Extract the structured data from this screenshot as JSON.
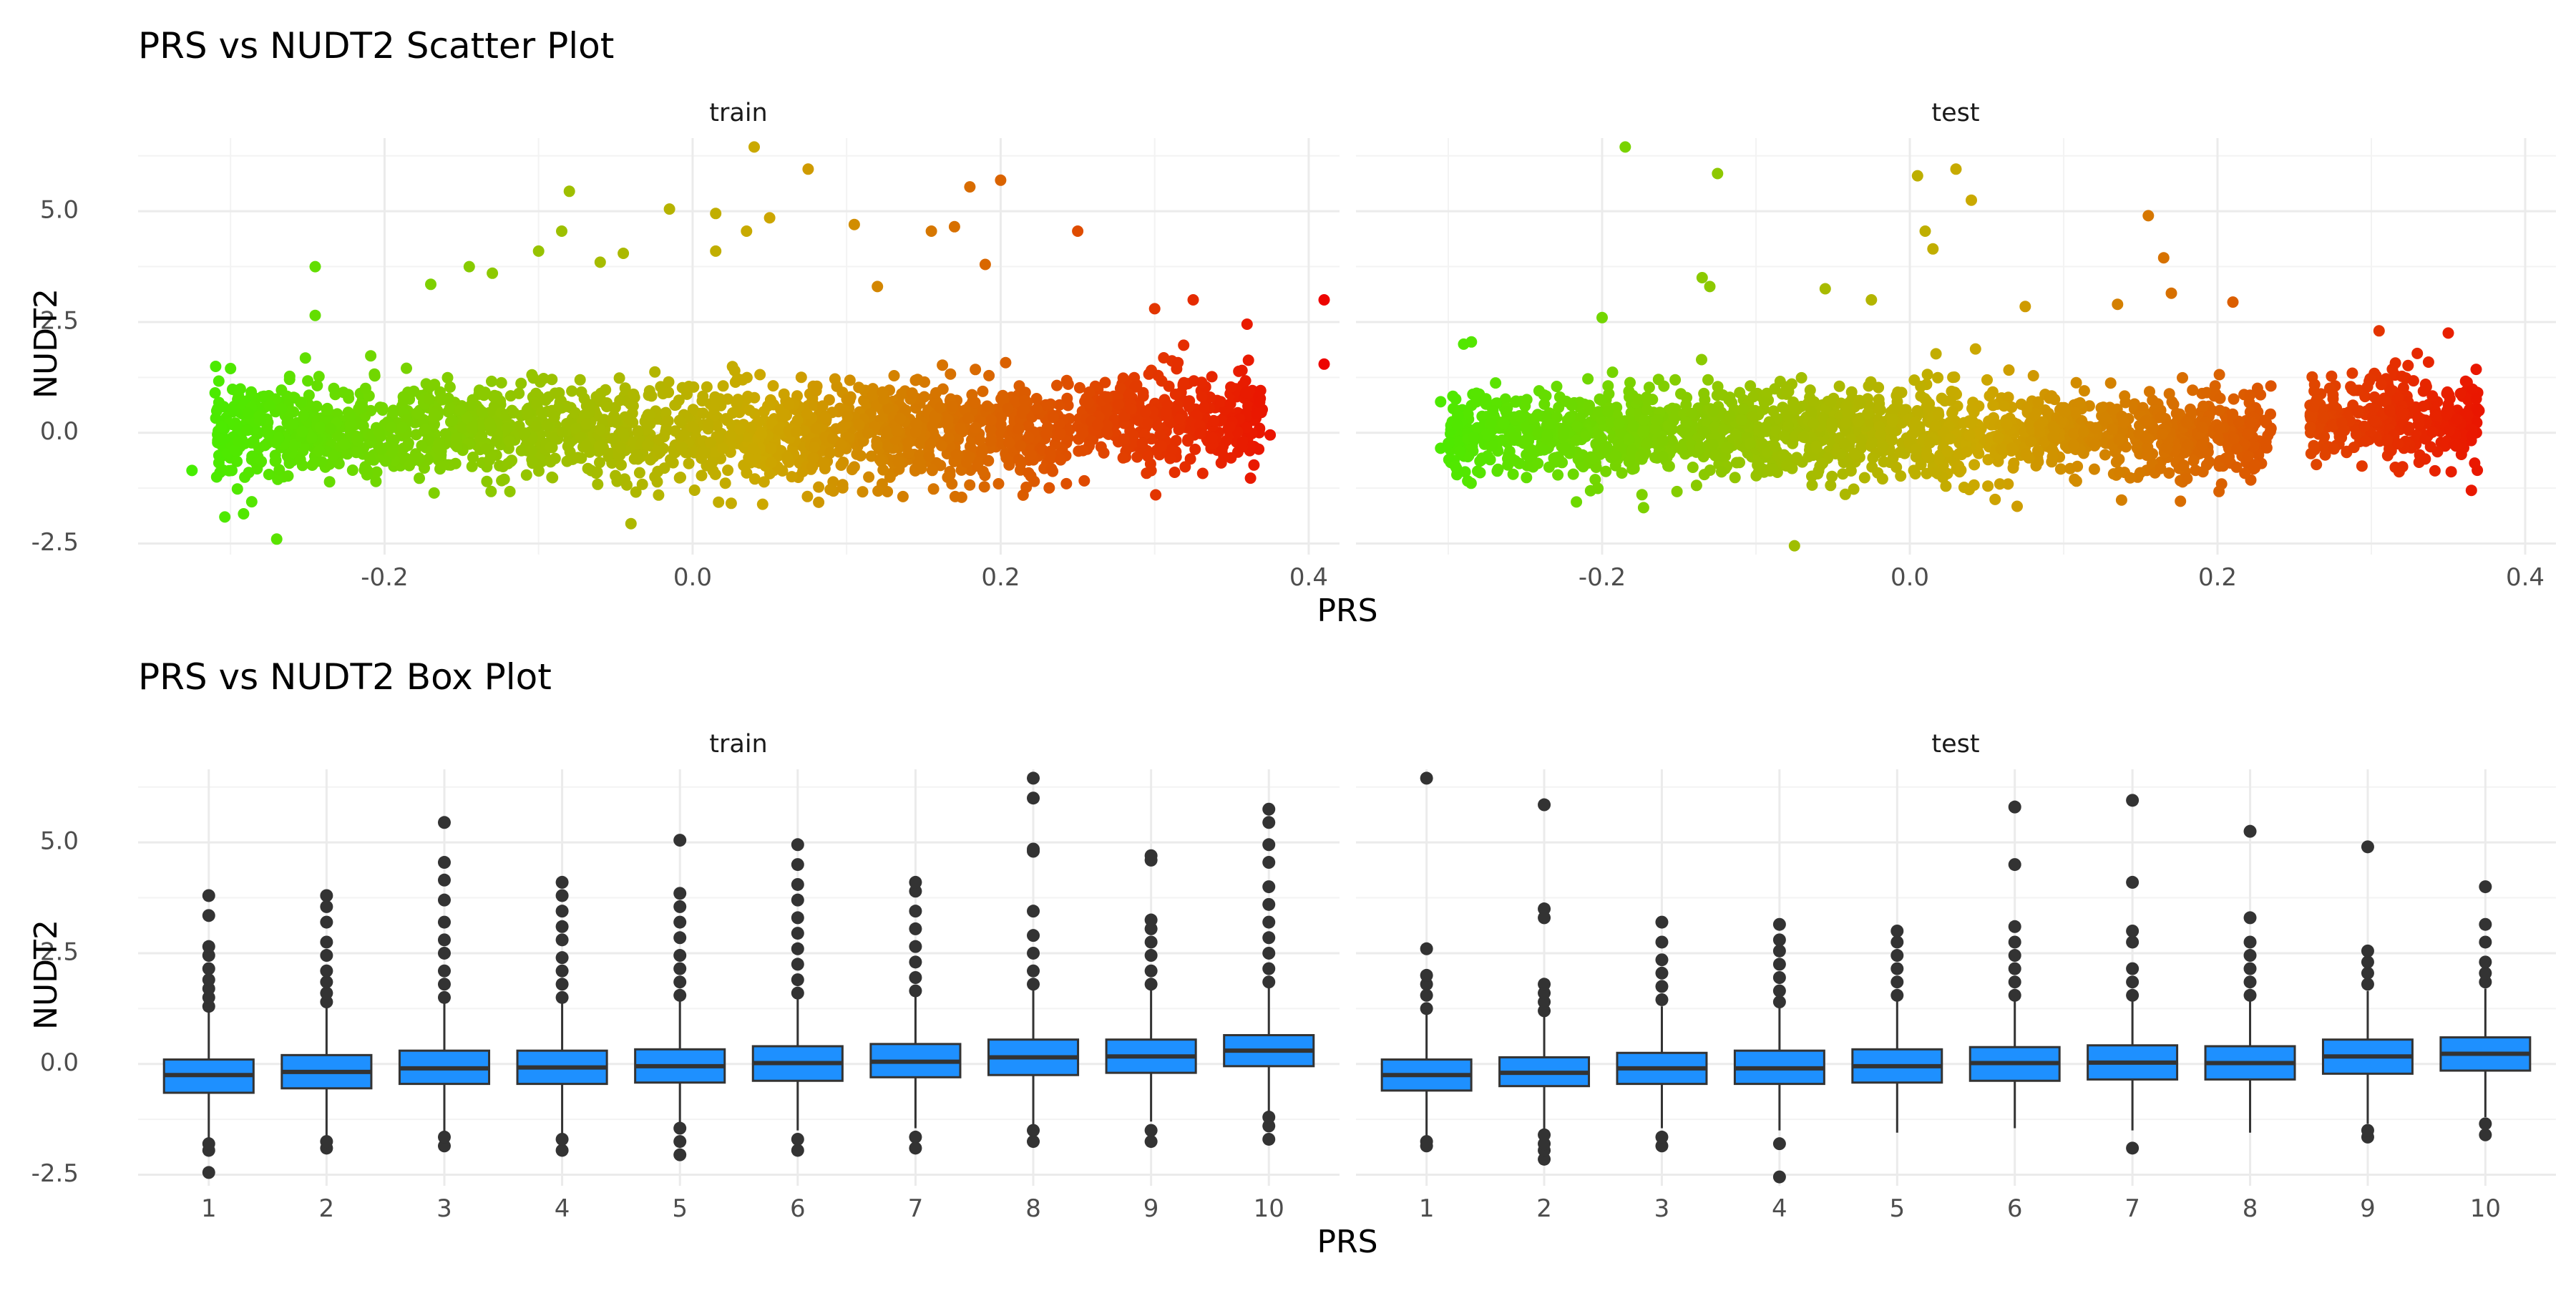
{
  "chart_data": [
    {
      "type": "scatter",
      "title": "PRS vs NUDT2 Scatter Plot",
      "xlabel": "PRS",
      "ylabel": "NUDT2",
      "xlim": [
        -0.36,
        0.42
      ],
      "ylim": [
        -2.75,
        6.65
      ],
      "x_ticks": [
        "-0.2",
        "0.0",
        "0.2",
        "0.4"
      ],
      "y_ticks": [
        "-2.5",
        "0.0",
        "2.5",
        "5.0"
      ],
      "grid": true,
      "color_scale": {
        "low": "#44ee00",
        "mid": "#cca800",
        "high": "#ee0000"
      },
      "panels": [
        {
          "label": "train",
          "clusters": [
            {
              "x_range": [
                -0.31,
                0.245
              ],
              "center_y": 0.0,
              "spread": 0.55
            },
            {
              "x_range": [
                0.25,
                0.37
              ],
              "center_y": 0.25,
              "spread": 0.55
            }
          ],
          "outliers": [
            {
              "x": -0.325,
              "y": -0.85
            },
            {
              "x": -0.31,
              "y": 0.9
            },
            {
              "x": -0.3,
              "y": 1.45
            },
            {
              "x": -0.295,
              "y": -0.2
            },
            {
              "x": -0.27,
              "y": -2.4
            },
            {
              "x": -0.245,
              "y": 3.75
            },
            {
              "x": -0.245,
              "y": 2.65
            },
            {
              "x": -0.17,
              "y": 3.35
            },
            {
              "x": -0.145,
              "y": 3.75
            },
            {
              "x": -0.13,
              "y": 3.6
            },
            {
              "x": -0.1,
              "y": 4.1
            },
            {
              "x": -0.085,
              "y": 4.55
            },
            {
              "x": -0.08,
              "y": 5.45
            },
            {
              "x": -0.06,
              "y": 3.85
            },
            {
              "x": -0.045,
              "y": 4.05
            },
            {
              "x": -0.04,
              "y": -2.05
            },
            {
              "x": -0.015,
              "y": 5.05
            },
            {
              "x": 0.015,
              "y": 4.1
            },
            {
              "x": 0.015,
              "y": 4.95
            },
            {
              "x": 0.035,
              "y": 4.55
            },
            {
              "x": 0.04,
              "y": 6.45
            },
            {
              "x": 0.05,
              "y": 4.85
            },
            {
              "x": 0.075,
              "y": 5.95
            },
            {
              "x": 0.105,
              "y": 4.7
            },
            {
              "x": 0.12,
              "y": 3.3
            },
            {
              "x": 0.155,
              "y": 4.55
            },
            {
              "x": 0.17,
              "y": 4.65
            },
            {
              "x": 0.18,
              "y": 5.55
            },
            {
              "x": 0.19,
              "y": 3.8
            },
            {
              "x": 0.2,
              "y": 5.7
            },
            {
              "x": 0.25,
              "y": 4.55
            },
            {
              "x": 0.3,
              "y": 2.8
            },
            {
              "x": 0.325,
              "y": 3.0
            },
            {
              "x": 0.36,
              "y": 2.45
            },
            {
              "x": 0.375,
              "y": -0.05
            },
            {
              "x": 0.41,
              "y": 3.0
            },
            {
              "x": 0.41,
              "y": 1.55
            }
          ]
        },
        {
          "label": "test",
          "clusters": [
            {
              "x_range": [
                -0.3,
                0.235
              ],
              "center_y": 0.0,
              "spread": 0.5
            },
            {
              "x_range": [
                0.26,
                0.37
              ],
              "center_y": 0.3,
              "spread": 0.5
            }
          ],
          "outliers": [
            {
              "x": -0.305,
              "y": 0.7
            },
            {
              "x": -0.305,
              "y": -0.35
            },
            {
              "x": -0.29,
              "y": 2.0
            },
            {
              "x": -0.285,
              "y": 2.05
            },
            {
              "x": -0.185,
              "y": 6.45
            },
            {
              "x": -0.2,
              "y": 2.6
            },
            {
              "x": -0.135,
              "y": 3.5
            },
            {
              "x": -0.13,
              "y": 3.3
            },
            {
              "x": -0.125,
              "y": 5.85
            },
            {
              "x": -0.075,
              "y": -2.55
            },
            {
              "x": -0.055,
              "y": 3.25
            },
            {
              "x": -0.025,
              "y": 3.0
            },
            {
              "x": 0.005,
              "y": 5.8
            },
            {
              "x": 0.01,
              "y": 4.55
            },
            {
              "x": 0.015,
              "y": 4.15
            },
            {
              "x": 0.03,
              "y": 5.95
            },
            {
              "x": 0.04,
              "y": 5.25
            },
            {
              "x": 0.075,
              "y": 2.85
            },
            {
              "x": 0.135,
              "y": 2.9
            },
            {
              "x": 0.155,
              "y": 4.9
            },
            {
              "x": 0.165,
              "y": 3.95
            },
            {
              "x": 0.17,
              "y": 3.15
            },
            {
              "x": 0.21,
              "y": 2.95
            },
            {
              "x": 0.27,
              "y": -0.5
            },
            {
              "x": 0.305,
              "y": 2.3
            },
            {
              "x": 0.35,
              "y": 2.25
            },
            {
              "x": 0.365,
              "y": -1.3
            },
            {
              "x": 0.355,
              "y": -0.3
            },
            {
              "x": 0.37,
              "y": 0.5
            }
          ]
        }
      ]
    },
    {
      "type": "box",
      "title": "PRS vs NUDT2 Box Plot",
      "xlabel": "PRS",
      "ylabel": "NUDT2",
      "categories": [
        "1",
        "2",
        "3",
        "4",
        "5",
        "6",
        "7",
        "8",
        "9",
        "10"
      ],
      "ylim": [
        -2.75,
        6.65
      ],
      "y_ticks": [
        "-2.5",
        "0.0",
        "2.5",
        "5.0"
      ],
      "grid": true,
      "fill_color": "#1e90ff",
      "panels": [
        {
          "label": "train",
          "boxes": [
            {
              "q1": -0.65,
              "median": -0.25,
              "q3": 0.1,
              "low": -1.7,
              "high": 1.2,
              "outliers": [
                -2.45,
                -1.95,
                -1.8,
                1.3,
                1.5,
                1.7,
                1.9,
                2.15,
                2.45,
                2.65,
                3.35,
                3.8
              ]
            },
            {
              "q1": -0.55,
              "median": -0.18,
              "q3": 0.2,
              "low": -1.7,
              "high": 1.3,
              "outliers": [
                -1.9,
                -1.75,
                1.4,
                1.6,
                1.85,
                2.1,
                2.45,
                2.75,
                3.2,
                3.55,
                3.8
              ]
            },
            {
              "q1": -0.45,
              "median": -0.1,
              "q3": 0.3,
              "low": -1.6,
              "high": 1.4,
              "outliers": [
                -1.85,
                -1.65,
                1.5,
                1.8,
                2.1,
                2.5,
                2.8,
                3.2,
                3.7,
                4.15,
                4.55,
                5.45
              ]
            },
            {
              "q1": -0.45,
              "median": -0.08,
              "q3": 0.3,
              "low": -1.6,
              "high": 1.4,
              "outliers": [
                -1.95,
                -1.7,
                1.5,
                1.8,
                2.1,
                2.4,
                2.8,
                3.1,
                3.45,
                3.8,
                4.1
              ]
            },
            {
              "q1": -0.42,
              "median": -0.05,
              "q3": 0.33,
              "low": -1.5,
              "high": 1.45,
              "outliers": [
                -2.05,
                -1.75,
                -1.45,
                1.55,
                1.85,
                2.15,
                2.45,
                2.85,
                3.2,
                3.55,
                3.85,
                5.05
              ]
            },
            {
              "q1": -0.38,
              "median": 0.02,
              "q3": 0.4,
              "low": -1.5,
              "high": 1.5,
              "outliers": [
                -1.95,
                -1.7,
                1.6,
                1.9,
                2.25,
                2.6,
                2.95,
                3.3,
                3.7,
                4.05,
                4.5,
                4.95
              ]
            },
            {
              "q1": -0.3,
              "median": 0.05,
              "q3": 0.45,
              "low": -1.45,
              "high": 1.55,
              "outliers": [
                -1.9,
                -1.65,
                1.65,
                1.95,
                2.3,
                2.65,
                3.05,
                3.45,
                3.9,
                4.1
              ]
            },
            {
              "q1": -0.25,
              "median": 0.15,
              "q3": 0.55,
              "low": -1.4,
              "high": 1.7,
              "outliers": [
                -1.75,
                -1.5,
                1.8,
                2.1,
                2.5,
                2.9,
                3.45,
                4.8,
                4.85,
                6.0,
                6.45
              ]
            },
            {
              "q1": -0.2,
              "median": 0.17,
              "q3": 0.55,
              "low": -1.3,
              "high": 1.7,
              "outliers": [
                -1.75,
                -1.5,
                1.8,
                2.1,
                2.45,
                2.75,
                3.05,
                3.25,
                4.6,
                4.7
              ]
            },
            {
              "q1": -0.05,
              "median": 0.3,
              "q3": 0.65,
              "low": -1.1,
              "high": 1.75,
              "outliers": [
                -1.7,
                -1.4,
                -1.2,
                1.85,
                2.15,
                2.5,
                2.85,
                3.2,
                3.6,
                4.0,
                4.55,
                4.95,
                5.45,
                5.75
              ]
            }
          ]
        },
        {
          "label": "test",
          "boxes": [
            {
              "q1": -0.6,
              "median": -0.25,
              "q3": 0.1,
              "low": -1.65,
              "high": 1.15,
              "outliers": [
                -1.85,
                -1.75,
                1.25,
                1.55,
                1.8,
                2.0,
                2.6,
                6.45
              ]
            },
            {
              "q1": -0.5,
              "median": -0.2,
              "q3": 0.15,
              "low": -1.5,
              "high": 1.1,
              "outliers": [
                -2.15,
                -1.95,
                -1.8,
                -1.6,
                1.2,
                1.4,
                1.6,
                1.8,
                3.3,
                3.5,
                5.85
              ]
            },
            {
              "q1": -0.45,
              "median": -0.1,
              "q3": 0.25,
              "low": -1.45,
              "high": 1.3,
              "outliers": [
                -1.85,
                -1.65,
                1.45,
                1.75,
                2.05,
                2.35,
                2.75,
                3.2
              ]
            },
            {
              "q1": -0.45,
              "median": -0.1,
              "q3": 0.3,
              "low": -1.5,
              "high": 1.3,
              "outliers": [
                -2.55,
                -1.8,
                1.4,
                1.65,
                1.95,
                2.25,
                2.55,
                2.8,
                3.15
              ]
            },
            {
              "q1": -0.42,
              "median": -0.05,
              "q3": 0.33,
              "low": -1.55,
              "high": 1.45,
              "outliers": [
                1.55,
                1.85,
                2.15,
                2.45,
                2.75,
                3.0
              ]
            },
            {
              "q1": -0.38,
              "median": 0.02,
              "q3": 0.38,
              "low": -1.45,
              "high": 1.45,
              "outliers": [
                1.55,
                1.85,
                2.15,
                2.45,
                2.75,
                3.1,
                4.5,
                5.8
              ]
            },
            {
              "q1": -0.35,
              "median": 0.03,
              "q3": 0.42,
              "low": -1.5,
              "high": 1.45,
              "outliers": [
                -1.9,
                1.55,
                1.85,
                2.15,
                2.75,
                3.0,
                4.1,
                5.95
              ]
            },
            {
              "q1": -0.35,
              "median": 0.02,
              "q3": 0.4,
              "low": -1.55,
              "high": 1.45,
              "outliers": [
                1.55,
                1.85,
                2.15,
                2.45,
                2.75,
                3.3,
                5.25
              ]
            },
            {
              "q1": -0.22,
              "median": 0.17,
              "q3": 0.55,
              "low": -1.35,
              "high": 1.65,
              "outliers": [
                -1.65,
                -1.5,
                1.8,
                2.05,
                2.3,
                2.55,
                4.9
              ]
            },
            {
              "q1": -0.15,
              "median": 0.23,
              "q3": 0.6,
              "low": -1.2,
              "high": 1.7,
              "outliers": [
                -1.6,
                -1.35,
                1.85,
                2.05,
                2.3,
                2.75,
                3.15,
                4.0
              ]
            }
          ]
        }
      ]
    }
  ]
}
